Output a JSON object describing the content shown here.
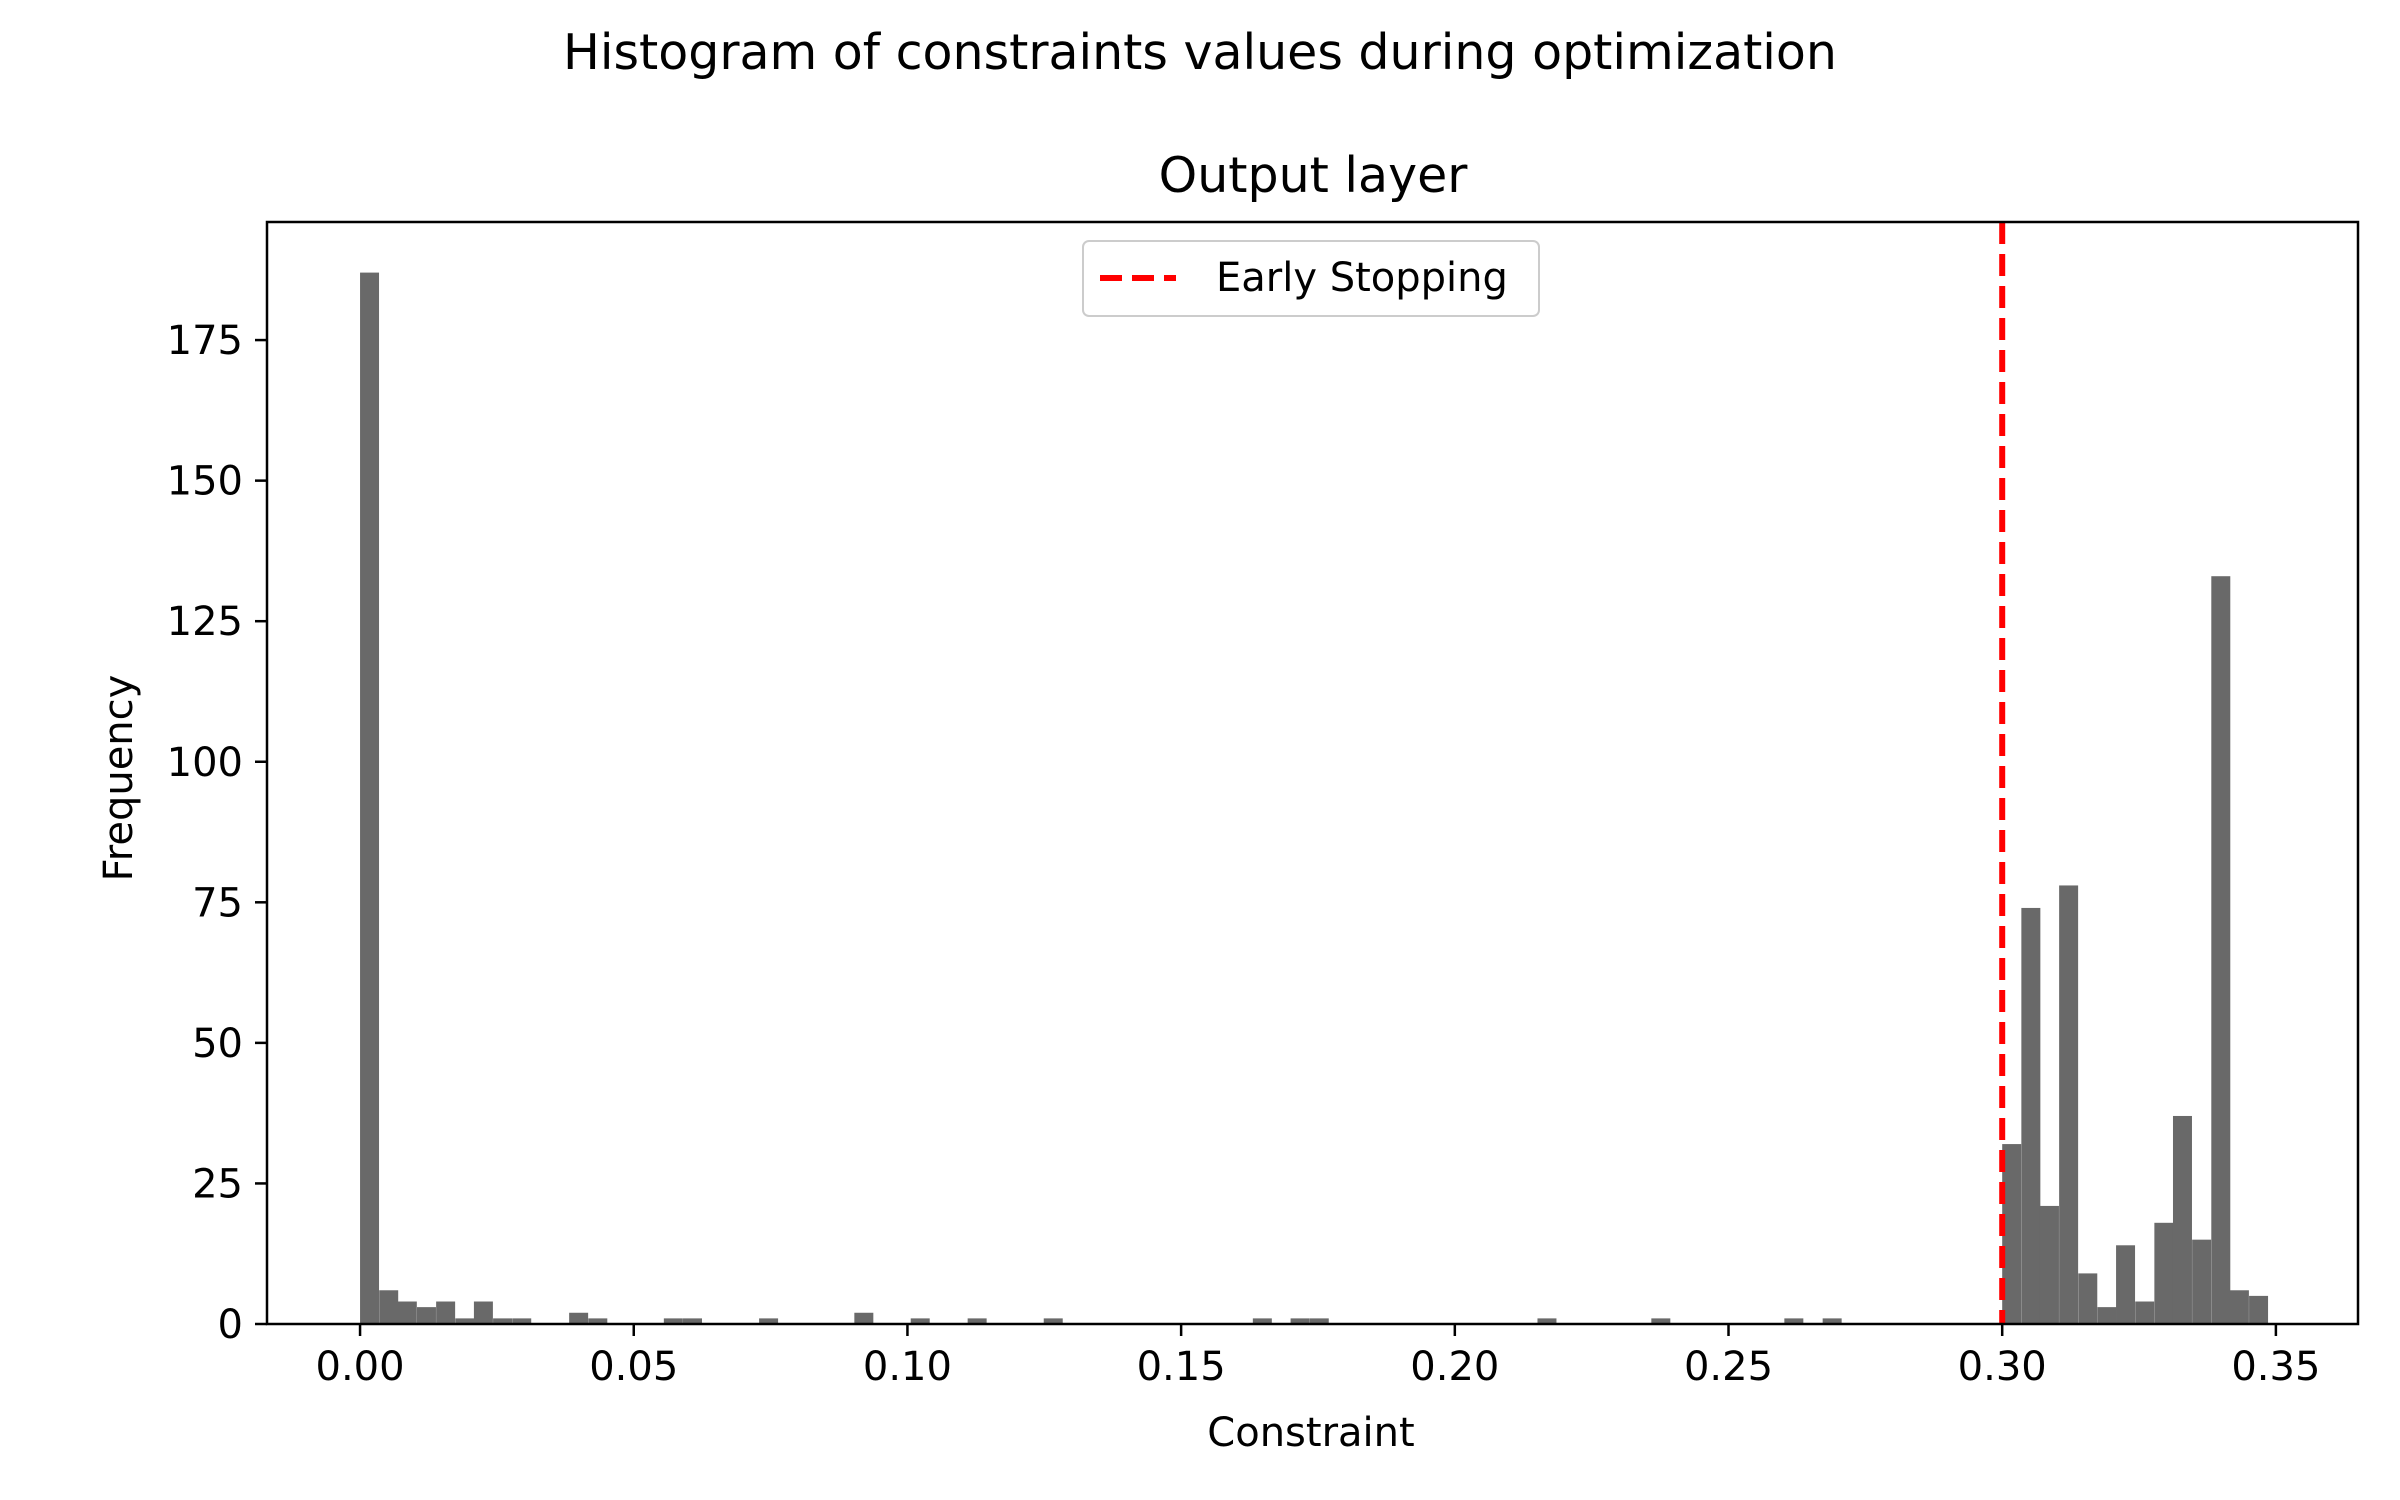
{
  "figure": {
    "suptitle": "Histogram of constraints values during optimization"
  },
  "chart_data": {
    "type": "bar",
    "title": "Output layer",
    "xlabel": "Constraint",
    "ylabel": "Frequency",
    "xlim": [
      -0.017,
      0.365
    ],
    "ylim": [
      0,
      196
    ],
    "xticks": [
      0.0,
      0.05,
      0.1,
      0.15,
      0.2,
      0.25,
      0.3,
      0.35
    ],
    "xtick_labels": [
      "0.00",
      "0.05",
      "0.10",
      "0.15",
      "0.20",
      "0.25",
      "0.30",
      "0.35"
    ],
    "yticks": [
      0,
      25,
      50,
      75,
      100,
      125,
      150,
      175
    ],
    "ytick_labels": [
      "0",
      "25",
      "50",
      "75",
      "100",
      "125",
      "150",
      "175"
    ],
    "bin_width": 0.00347,
    "bins": [
      {
        "x": 0.0,
        "count": 187
      },
      {
        "x": 0.0035,
        "count": 6
      },
      {
        "x": 0.0069,
        "count": 4
      },
      {
        "x": 0.0104,
        "count": 3
      },
      {
        "x": 0.0139,
        "count": 4
      },
      {
        "x": 0.0174,
        "count": 1
      },
      {
        "x": 0.0208,
        "count": 4
      },
      {
        "x": 0.0243,
        "count": 1
      },
      {
        "x": 0.0278,
        "count": 1
      },
      {
        "x": 0.0382,
        "count": 2
      },
      {
        "x": 0.0417,
        "count": 1
      },
      {
        "x": 0.0555,
        "count": 1
      },
      {
        "x": 0.059,
        "count": 1
      },
      {
        "x": 0.0729,
        "count": 1
      },
      {
        "x": 0.0903,
        "count": 2
      },
      {
        "x": 0.1006,
        "count": 1
      },
      {
        "x": 0.111,
        "count": 1
      },
      {
        "x": 0.1249,
        "count": 1
      },
      {
        "x": 0.1631,
        "count": 1
      },
      {
        "x": 0.17,
        "count": 1
      },
      {
        "x": 0.1735,
        "count": 1
      },
      {
        "x": 0.2151,
        "count": 1
      },
      {
        "x": 0.2359,
        "count": 1
      },
      {
        "x": 0.2602,
        "count": 1
      },
      {
        "x": 0.2672,
        "count": 1
      },
      {
        "x": 0.3,
        "count": 32
      },
      {
        "x": 0.3035,
        "count": 74
      },
      {
        "x": 0.3069,
        "count": 21
      },
      {
        "x": 0.3104,
        "count": 78
      },
      {
        "x": 0.3139,
        "count": 9
      },
      {
        "x": 0.3174,
        "count": 3
      },
      {
        "x": 0.3208,
        "count": 14
      },
      {
        "x": 0.3243,
        "count": 4
      },
      {
        "x": 0.3278,
        "count": 18
      },
      {
        "x": 0.3312,
        "count": 37
      },
      {
        "x": 0.3347,
        "count": 15
      },
      {
        "x": 0.3382,
        "count": 133
      },
      {
        "x": 0.3416,
        "count": 6
      },
      {
        "x": 0.3451,
        "count": 5
      }
    ],
    "bar_color": "#696969",
    "vline": {
      "x": 0.3,
      "label": "Early Stopping",
      "color": "#ff0000",
      "style": "dashed"
    },
    "legend": {
      "position": "top-center",
      "entries": [
        "Early Stopping"
      ]
    },
    "grid": false
  }
}
